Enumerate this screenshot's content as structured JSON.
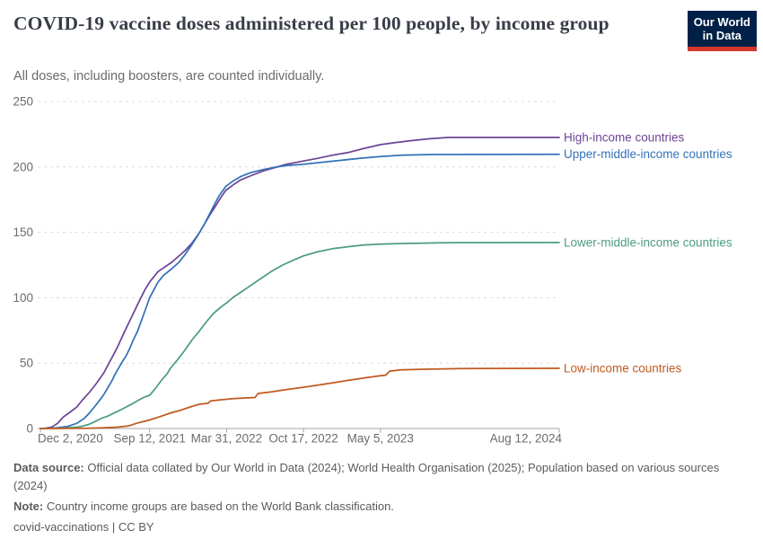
{
  "header": {
    "title": "COVID-19 vaccine doses administered per 100 people, by income group",
    "subtitle": "All doses, including boosters, are counted individually.",
    "logo": {
      "line1": "Our World",
      "line2": "in Data",
      "bg": "#002147",
      "accent": "#d6372d"
    }
  },
  "chart_data": {
    "type": "line",
    "title": "COVID-19 vaccine doses administered per 100 people, by income group",
    "subtitle": "All doses, including boosters, are counted individually.",
    "grid": "dashed-horizontal",
    "legend_position": "right-of-line-ends",
    "y_axis": {
      "label": "",
      "range": [
        0,
        250
      ],
      "ticks": [
        0,
        50,
        100,
        150,
        200,
        250
      ]
    },
    "x_axis": {
      "unit": "days since Dec 2, 2020",
      "domain_days": [
        0,
        1349
      ],
      "ticks": [
        {
          "label": "Dec 2, 2020",
          "day": 0,
          "anchor": "start"
        },
        {
          "label": "Sep 12, 2021",
          "day": 284,
          "anchor": "middle"
        },
        {
          "label": "Mar 31, 2022",
          "day": 484,
          "anchor": "middle"
        },
        {
          "label": "Oct 17, 2022",
          "day": 684,
          "anchor": "middle"
        },
        {
          "label": "May 5, 2023",
          "day": 884,
          "anchor": "middle"
        },
        {
          "label": "Aug 12, 2024",
          "day": 1349,
          "anchor": "end"
        }
      ]
    },
    "series": [
      {
        "id": "high-income",
        "name": "High-income countries",
        "color": "#6d4496",
        "final_value": 222.5,
        "points": [
          [
            0,
            0
          ],
          [
            15,
            0.3
          ],
          [
            30,
            1.2
          ],
          [
            45,
            4
          ],
          [
            59,
            8.7
          ],
          [
            75,
            12
          ],
          [
            94,
            16.3
          ],
          [
            110,
            22
          ],
          [
            129,
            28.2
          ],
          [
            147,
            35
          ],
          [
            165,
            42.6
          ],
          [
            182,
            52
          ],
          [
            200,
            62
          ],
          [
            217,
            73
          ],
          [
            235,
            84
          ],
          [
            253,
            95
          ],
          [
            271,
            105.6
          ],
          [
            284,
            112
          ],
          [
            306,
            120
          ],
          [
            341,
            127
          ],
          [
            376,
            136
          ],
          [
            395,
            142
          ],
          [
            412,
            149
          ],
          [
            426,
            156
          ],
          [
            440,
            163
          ],
          [
            455,
            170
          ],
          [
            470,
            177
          ],
          [
            482,
            182
          ],
          [
            500,
            186
          ],
          [
            520,
            190
          ],
          [
            545,
            193
          ],
          [
            580,
            197
          ],
          [
            610,
            199.5
          ],
          [
            640,
            202
          ],
          [
            684,
            204.5
          ],
          [
            720,
            206.5
          ],
          [
            760,
            209
          ],
          [
            800,
            211
          ],
          [
            840,
            214
          ],
          [
            884,
            217
          ],
          [
            920,
            218.5
          ],
          [
            960,
            220
          ],
          [
            1010,
            221.5
          ],
          [
            1060,
            222.5
          ],
          [
            1160,
            222.5
          ],
          [
            1349,
            222.5
          ]
        ]
      },
      {
        "id": "upper-middle-income",
        "name": "Upper-middle-income countries",
        "color": "#3372b7",
        "final_value": 209.7,
        "points": [
          [
            0,
            0
          ],
          [
            40,
            0.4
          ],
          [
            70,
            1.5
          ],
          [
            95,
            4
          ],
          [
            115,
            8
          ],
          [
            128,
            12
          ],
          [
            142,
            17
          ],
          [
            155,
            22
          ],
          [
            165,
            26
          ],
          [
            175,
            31
          ],
          [
            185,
            36
          ],
          [
            195,
            42
          ],
          [
            205,
            47
          ],
          [
            215,
            52
          ],
          [
            222,
            55
          ],
          [
            232,
            61
          ],
          [
            242,
            68
          ],
          [
            252,
            74
          ],
          [
            262,
            82
          ],
          [
            272,
            90
          ],
          [
            284,
            100
          ],
          [
            295,
            106
          ],
          [
            306,
            112
          ],
          [
            320,
            117
          ],
          [
            341,
            122
          ],
          [
            360,
            127
          ],
          [
            376,
            133
          ],
          [
            395,
            141
          ],
          [
            412,
            149
          ],
          [
            426,
            156
          ],
          [
            440,
            164
          ],
          [
            452,
            171
          ],
          [
            465,
            178
          ],
          [
            482,
            185
          ],
          [
            500,
            189
          ],
          [
            520,
            192.5
          ],
          [
            545,
            195.5
          ],
          [
            580,
            198
          ],
          [
            610,
            199.8
          ],
          [
            640,
            201
          ],
          [
            684,
            202
          ],
          [
            730,
            203.5
          ],
          [
            780,
            205
          ],
          [
            830,
            206.5
          ],
          [
            884,
            208
          ],
          [
            940,
            209
          ],
          [
            1020,
            209.5
          ],
          [
            1349,
            209.7
          ]
        ]
      },
      {
        "id": "lower-middle-income",
        "name": "Lower-middle-income countries",
        "color": "#4c9c82",
        "final_value": 142.2,
        "points": [
          [
            0,
            0
          ],
          [
            60,
            0.3
          ],
          [
            100,
            1.2
          ],
          [
            125,
            3
          ],
          [
            140,
            5
          ],
          [
            160,
            8
          ],
          [
            175,
            9.5
          ],
          [
            200,
            13
          ],
          [
            222,
            16.3
          ],
          [
            240,
            19
          ],
          [
            257,
            22
          ],
          [
            270,
            24
          ],
          [
            284,
            25.4
          ],
          [
            300,
            31
          ],
          [
            315,
            37
          ],
          [
            330,
            42
          ],
          [
            338,
            46
          ],
          [
            355,
            52
          ],
          [
            376,
            60
          ],
          [
            395,
            68
          ],
          [
            412,
            74
          ],
          [
            430,
            81
          ],
          [
            450,
            88
          ],
          [
            470,
            93
          ],
          [
            484,
            96
          ],
          [
            500,
            100
          ],
          [
            520,
            104
          ],
          [
            545,
            109
          ],
          [
            570,
            114
          ],
          [
            600,
            120
          ],
          [
            630,
            125
          ],
          [
            660,
            129
          ],
          [
            684,
            132
          ],
          [
            720,
            135
          ],
          [
            760,
            137.5
          ],
          [
            800,
            139
          ],
          [
            840,
            140.3
          ],
          [
            884,
            141
          ],
          [
            950,
            141.5
          ],
          [
            1050,
            142
          ],
          [
            1349,
            142.2
          ]
        ]
      },
      {
        "id": "low-income",
        "name": "Low-income countries",
        "color": "#bf5a1f",
        "final_value": 46,
        "points": [
          [
            0,
            0
          ],
          [
            120,
            0.2
          ],
          [
            160,
            0.5
          ],
          [
            200,
            1
          ],
          [
            230,
            2
          ],
          [
            250,
            4
          ],
          [
            270,
            5.5
          ],
          [
            284,
            6.5
          ],
          [
            310,
            9
          ],
          [
            340,
            12
          ],
          [
            365,
            14
          ],
          [
            390,
            16.5
          ],
          [
            412,
            18.5
          ],
          [
            436,
            19.3
          ],
          [
            442,
            21
          ],
          [
            470,
            22
          ],
          [
            500,
            22.8
          ],
          [
            545,
            23.5
          ],
          [
            558,
            23.7
          ],
          [
            566,
            26.8
          ],
          [
            600,
            28
          ],
          [
            640,
            29.8
          ],
          [
            690,
            31.8
          ],
          [
            740,
            34
          ],
          [
            800,
            36.8
          ],
          [
            850,
            39
          ],
          [
            884,
            40.3
          ],
          [
            898,
            40.8
          ],
          [
            908,
            43.8
          ],
          [
            935,
            44.8
          ],
          [
            1000,
            45.3
          ],
          [
            1100,
            45.8
          ],
          [
            1349,
            46
          ]
        ]
      }
    ]
  },
  "footer": {
    "source_label": "Data source:",
    "source_text": "Official data collated by Our World in Data (2024); World Health Organisation (2025); Population based on various sources (2024)",
    "note_label": "Note:",
    "note_text": "Country income groups are based on the World Bank classification.",
    "license": "covid-vaccinations | CC BY"
  }
}
